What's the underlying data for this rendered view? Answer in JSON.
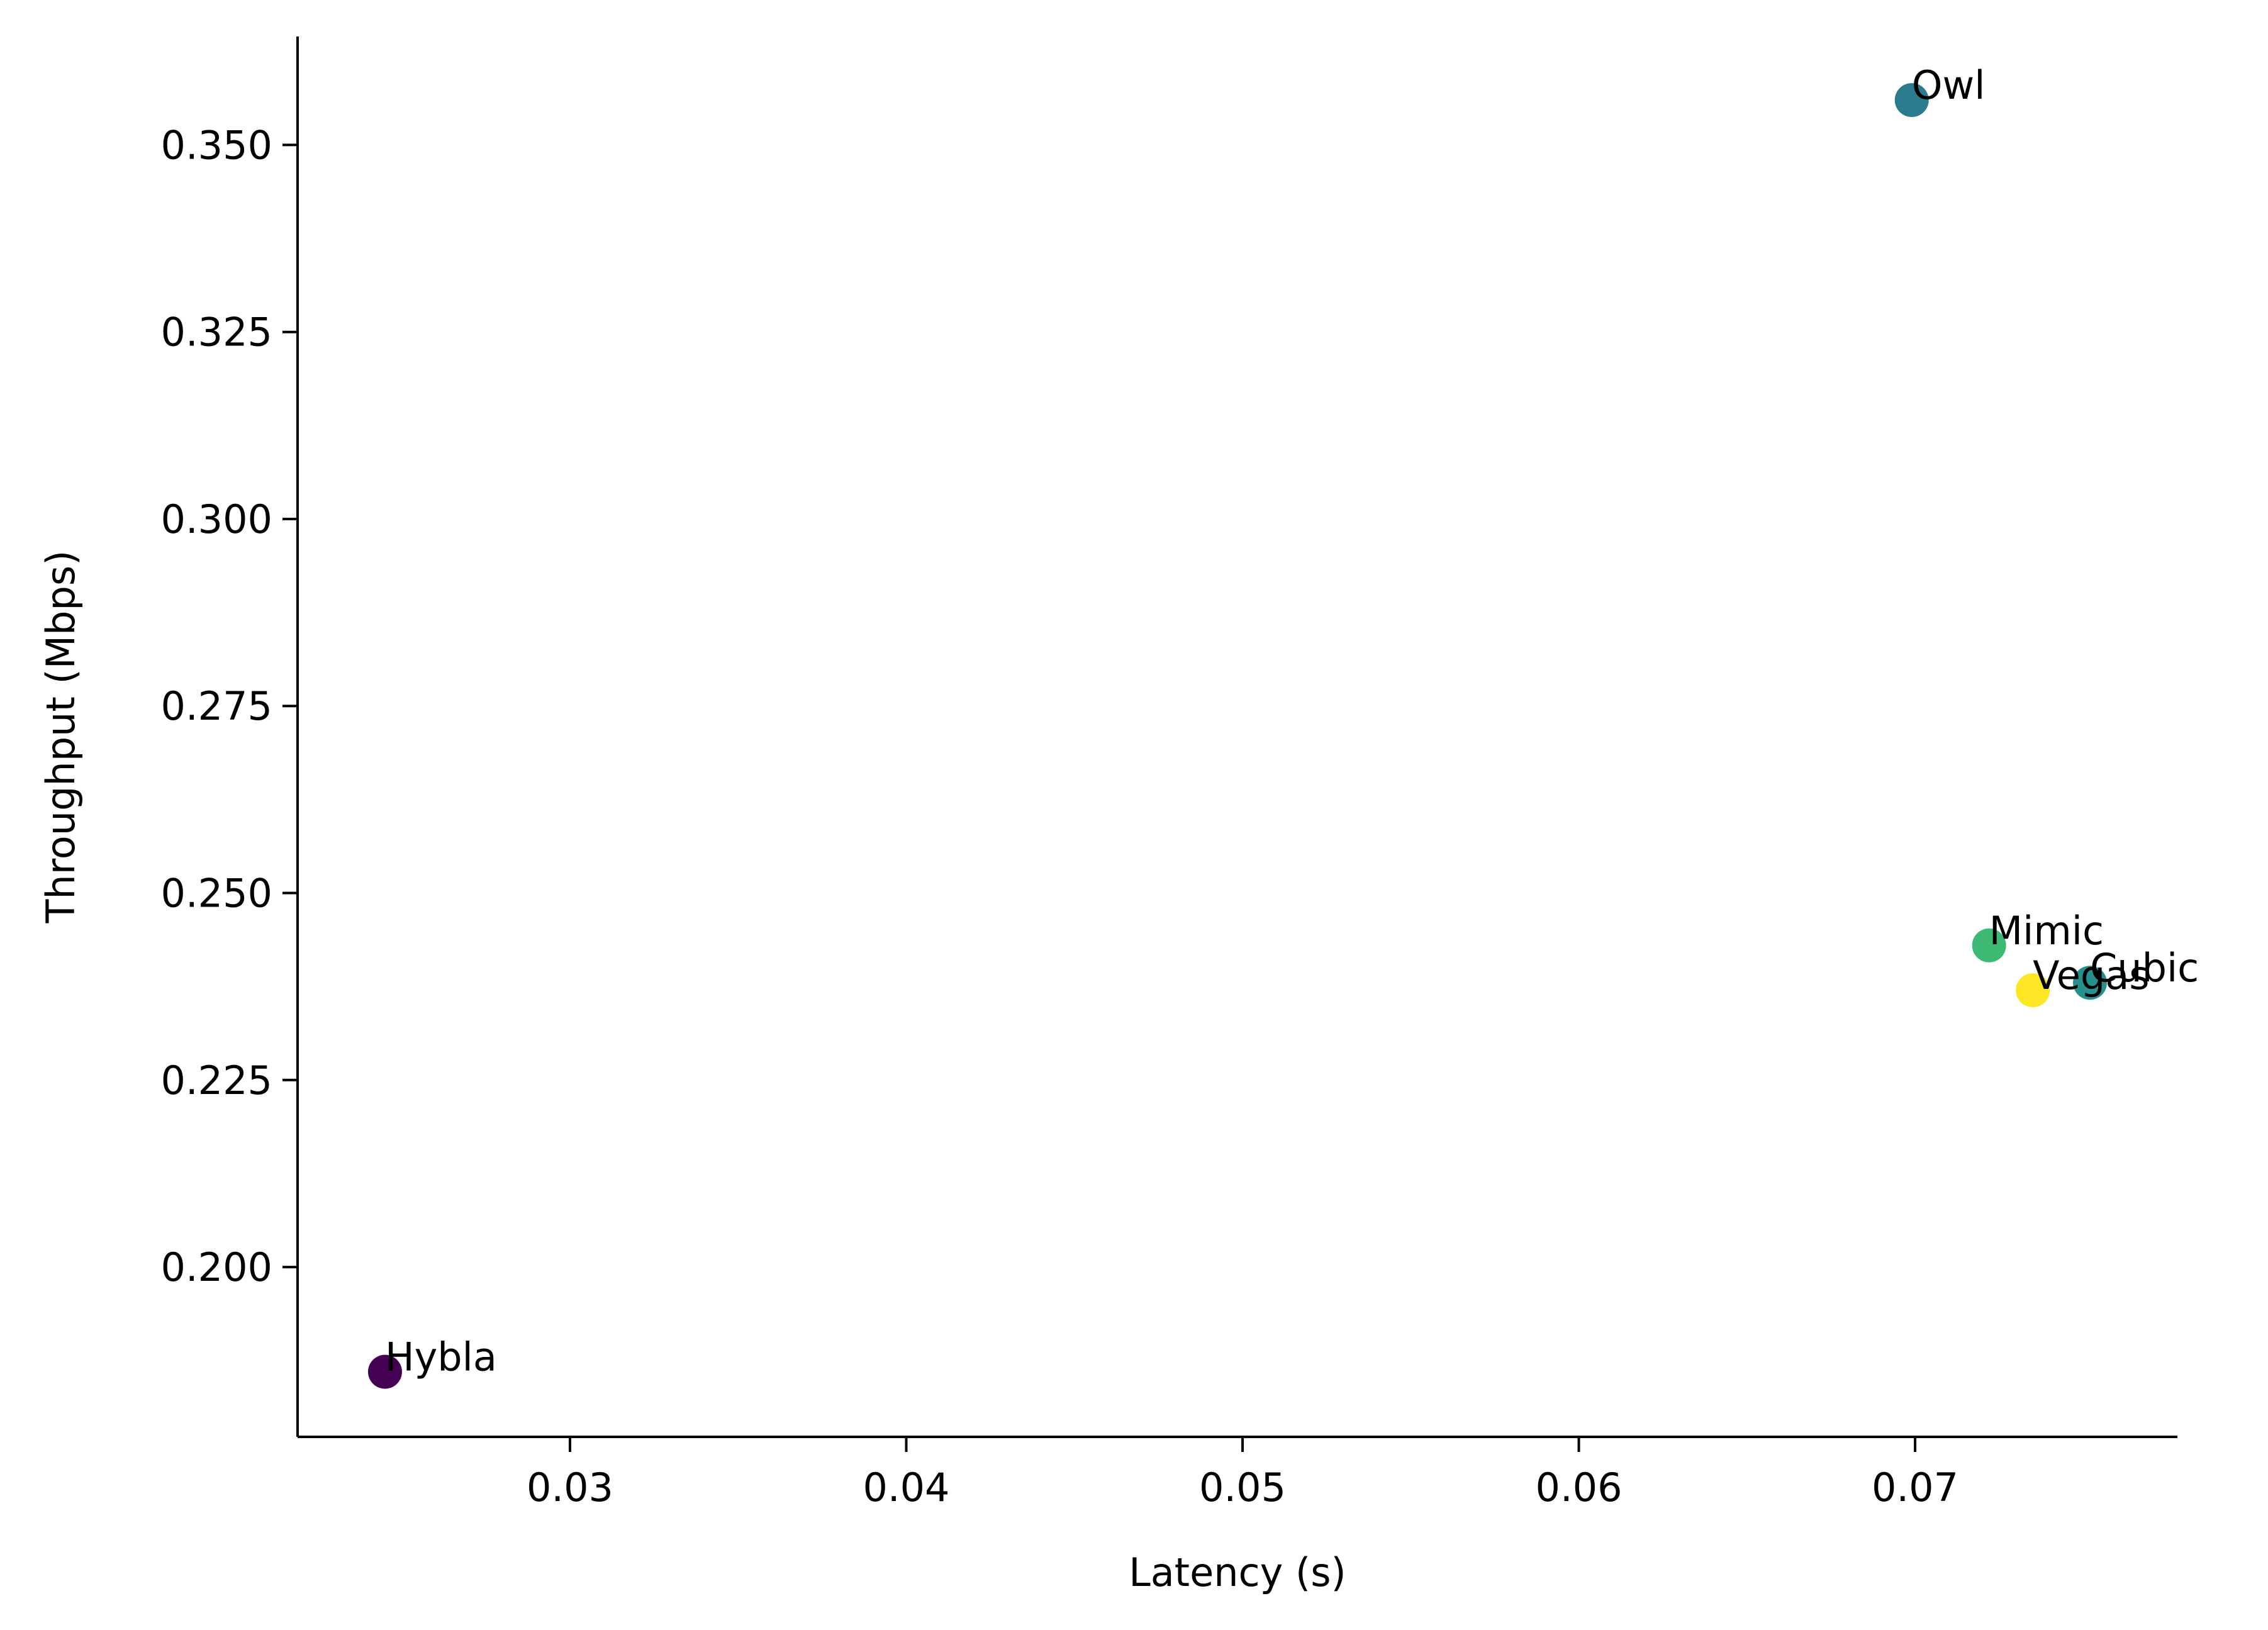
{
  "chart_data": {
    "type": "scatter",
    "title": "",
    "xlabel": "Latency (s)",
    "ylabel": "Throughput (Mbps)",
    "xlim": [
      0.0219,
      0.0778
    ],
    "ylim": [
      0.1773,
      0.3645
    ],
    "xticks": [
      0.03,
      0.04,
      0.05,
      0.06,
      0.07
    ],
    "xtick_labels": [
      "0.03",
      "0.04",
      "0.05",
      "0.06",
      "0.07"
    ],
    "yticks": [
      0.2,
      0.225,
      0.25,
      0.275,
      0.3,
      0.325,
      0.35
    ],
    "ytick_labels": [
      "0.200",
      "0.225",
      "0.250",
      "0.275",
      "0.300",
      "0.325",
      "0.350"
    ],
    "grid": false,
    "points": [
      {
        "label": "Owl",
        "x": 0.0699,
        "y": 0.356,
        "color": "#2a7b8e"
      },
      {
        "label": "Mimic",
        "x": 0.0722,
        "y": 0.243,
        "color": "#3dbb74"
      },
      {
        "label": "Cubic",
        "x": 0.0752,
        "y": 0.238,
        "color": "#26908c"
      },
      {
        "label": "Vegas",
        "x": 0.0735,
        "y": 0.237,
        "color": "#fde725"
      },
      {
        "label": "Hybla",
        "x": 0.0245,
        "y": 0.186,
        "color": "#440154"
      }
    ]
  }
}
